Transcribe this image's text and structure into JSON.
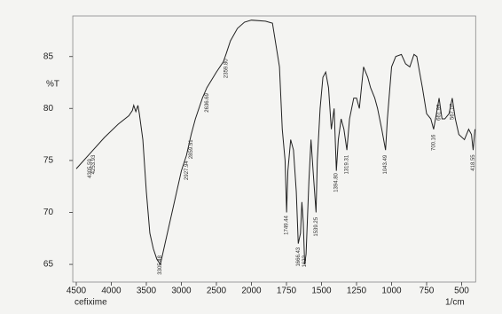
{
  "chart_data": {
    "type": "line",
    "title": "cefixime",
    "y_label": "%T",
    "x_label": "1/cm",
    "xlim": [
      4550,
      400
    ],
    "ylim": [
      63.3,
      88.9
    ],
    "xticks": [
      4500,
      4000,
      3500,
      3000,
      2500,
      2000,
      1750,
      1500,
      1250,
      1000,
      750,
      500
    ],
    "yticks": [
      65,
      70,
      75,
      80,
      85
    ],
    "series": [
      {
        "name": "cefixime",
        "color": "#222222",
        "x": [
          4500,
          4300,
          4100,
          3900,
          3750,
          3700,
          3680,
          3650,
          3620,
          3600,
          3550,
          3500,
          3450,
          3400,
          3350,
          3300,
          3250,
          3200,
          3100,
          3000,
          2927,
          2860,
          2800,
          2700,
          2636,
          2500,
          2400,
          2359,
          2300,
          2200,
          2100,
          2000,
          1900,
          1850,
          1800,
          1780,
          1760,
          1749,
          1740,
          1720,
          1700,
          1680,
          1666,
          1650,
          1640,
          1630,
          1620,
          1610,
          1590,
          1575,
          1560,
          1539,
          1530,
          1510,
          1490,
          1470,
          1450,
          1430,
          1410,
          1394,
          1380,
          1360,
          1340,
          1319,
          1300,
          1270,
          1250,
          1230,
          1200,
          1170,
          1150,
          1120,
          1100,
          1070,
          1043,
          1030,
          1000,
          970,
          930,
          900,
          870,
          840,
          820,
          800,
          780,
          750,
          720,
          700,
          680,
          661,
          640,
          620,
          590,
          567,
          545,
          520,
          480,
          450,
          430,
          418,
          405
        ],
        "values": [
          74.2,
          75.7,
          77.2,
          78.5,
          79.3,
          79.8,
          80.3,
          79.7,
          80.3,
          79.5,
          77,
          72,
          68,
          66.5,
          65.5,
          65,
          66.5,
          68,
          71,
          74,
          75.5,
          77.5,
          79,
          81,
          82,
          83.5,
          84.5,
          85.3,
          86.5,
          87.7,
          88.3,
          88.5,
          88.4,
          88.2,
          84,
          78,
          75,
          70,
          74,
          77,
          76,
          72,
          67,
          68,
          71,
          69,
          65,
          66,
          73,
          77,
          74,
          70,
          75,
          80,
          83,
          83.5,
          82,
          78,
          80,
          74,
          77,
          79,
          78,
          76,
          79,
          81,
          81,
          80,
          84,
          83,
          82,
          81,
          80,
          78,
          76,
          79,
          84,
          85,
          85.2,
          84.3,
          84,
          85.2,
          85,
          83.5,
          82,
          79.5,
          79,
          78,
          79.5,
          81,
          79,
          79,
          79.5,
          81,
          79,
          77.5,
          77,
          78,
          77.5,
          76,
          78
        ]
      }
    ],
    "peak_labels": [
      {
        "value": 4305.59,
        "label": "4305.59"
      },
      {
        "value": 4253.93,
        "label": "4253.93"
      },
      {
        "value": 3305.48,
        "label": "3305.48"
      },
      {
        "value": 2927.94,
        "label": "2927.94"
      },
      {
        "value": 2859.51,
        "label": "2859.51"
      },
      {
        "value": 2636.69,
        "label": "2636.69"
      },
      {
        "value": 2359.8,
        "label": "2359.80"
      },
      {
        "value": 1749.44,
        "label": "1749.44"
      },
      {
        "value": 1666.43,
        "label": "1666.43"
      },
      {
        "value": 1622,
        "label": "1622"
      },
      {
        "value": 1539.25,
        "label": "1539.25"
      },
      {
        "value": 1394.8,
        "label": "1394.80"
      },
      {
        "value": 1319.31,
        "label": "1319.31"
      },
      {
        "value": 1043.49,
        "label": "1043.49"
      },
      {
        "value": 700.16,
        "label": "700.16"
      },
      {
        "value": 661.99,
        "label": "661.99"
      },
      {
        "value": 567.07,
        "label": "567.07"
      },
      {
        "value": 418.55,
        "label": "418.55"
      }
    ]
  }
}
